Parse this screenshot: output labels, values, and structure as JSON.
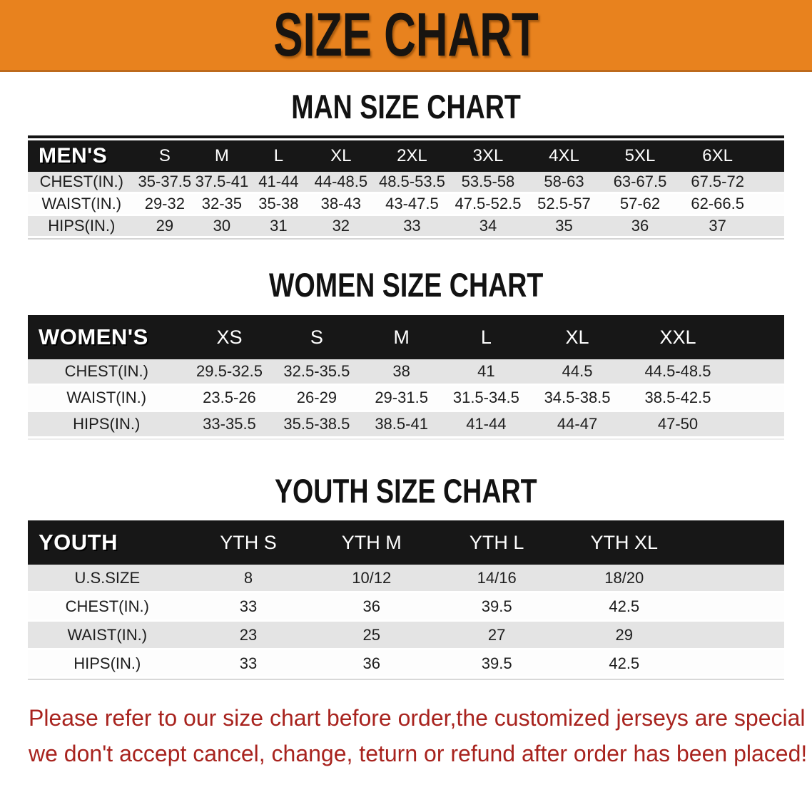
{
  "banner": {
    "title": "SIZE CHART"
  },
  "colors": {
    "banner_bg": "#E8821E",
    "header_bar_bg": "#171717",
    "row_stripe": "#E4E4E4",
    "footer_text": "#A8231E"
  },
  "sections": [
    {
      "id": "mens",
      "title": "MAN SIZE CHART",
      "header_label": "MEN'S",
      "columns": [
        "S",
        "M",
        "L",
        "XL",
        "2XL",
        "3XL",
        "4XL",
        "5XL",
        "6XL"
      ],
      "rows": [
        {
          "label": "CHEST(IN.)",
          "values": [
            "35-37.5",
            "37.5-41",
            "41-44",
            "44-48.5",
            "48.5-53.5",
            "53.5-58",
            "58-63",
            "63-67.5",
            "67.5-72"
          ]
        },
        {
          "label": "WAIST(IN.)",
          "values": [
            "29-32",
            "32-35",
            "35-38",
            "38-43",
            "43-47.5",
            "47.5-52.5",
            "52.5-57",
            "57-62",
            "62-66.5"
          ]
        },
        {
          "label": "HIPS(IN.)",
          "values": [
            "29",
            "30",
            "31",
            "32",
            "33",
            "34",
            "35",
            "36",
            "37"
          ]
        }
      ]
    },
    {
      "id": "womens",
      "title": "WOMEN SIZE CHART",
      "header_label": "WOMEN'S",
      "columns": [
        "XS",
        "S",
        "M",
        "L",
        "XL",
        "XXL"
      ],
      "rows": [
        {
          "label": "CHEST(IN.)",
          "values": [
            "29.5-32.5",
            "32.5-35.5",
            "38",
            "41",
            "44.5",
            "44.5-48.5"
          ]
        },
        {
          "label": "WAIST(IN.)",
          "values": [
            "23.5-26",
            "26-29",
            "29-31.5",
            "31.5-34.5",
            "34.5-38.5",
            "38.5-42.5"
          ]
        },
        {
          "label": "HIPS(IN.)",
          "values": [
            "33-35.5",
            "35.5-38.5",
            "38.5-41",
            "41-44",
            "44-47",
            "47-50"
          ]
        }
      ]
    },
    {
      "id": "youth",
      "title": "YOUTH SIZE CHART",
      "header_label": "YOUTH",
      "columns": [
        "YTH S",
        "YTH M",
        "YTH L",
        "YTH XL"
      ],
      "rows": [
        {
          "label": "U.S.SIZE",
          "values": [
            "8",
            "10/12",
            "14/16",
            "18/20"
          ]
        },
        {
          "label": "CHEST(IN.)",
          "values": [
            "33",
            "36",
            "39.5",
            "42.5"
          ]
        },
        {
          "label": "WAIST(IN.)",
          "values": [
            "23",
            "25",
            "27",
            "29"
          ]
        },
        {
          "label": "HIPS(IN.)",
          "values": [
            "33",
            "36",
            "39.5",
            "42.5"
          ]
        }
      ]
    }
  ],
  "footer": {
    "line1": "Please refer to our size chart before order,the customized jerseys are special products,",
    "line2": "we don't accept cancel, change, teturn or refund after order has been placed!"
  }
}
